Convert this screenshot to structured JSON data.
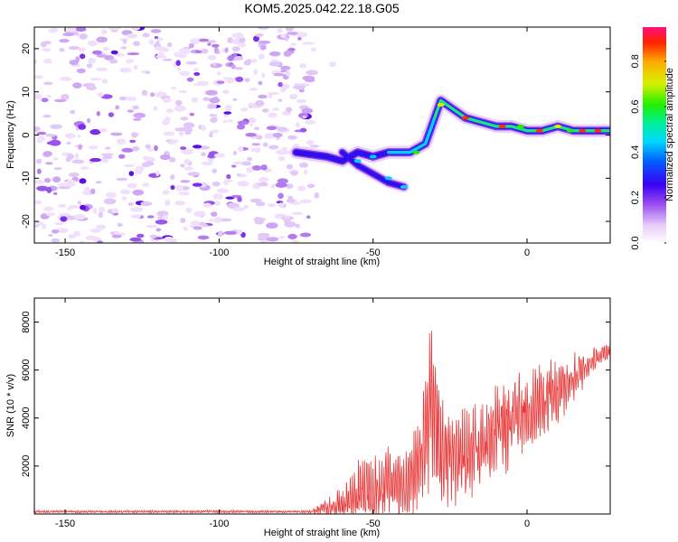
{
  "chart_data": [
    {
      "type": "heatmap",
      "title": "KOM5.2025.042.22.18.G05",
      "xlabel": "Height of straight line (km)",
      "ylabel": "Frequency (Hz)",
      "xlim": [
        -160,
        27
      ],
      "ylim": [
        -25,
        25
      ],
      "xticks": [
        -150,
        -100,
        -50,
        0
      ],
      "yticks": [
        -20,
        -10,
        0,
        10,
        20
      ],
      "colorbar": {
        "label": "Normalized spectral amplitude",
        "range": [
          0,
          0.95
        ],
        "ticks": [
          0.0,
          0.2,
          0.4,
          0.6,
          0.8
        ]
      },
      "ridge": {
        "name": "dominant frequency trace",
        "points": [
          {
            "x": -75,
            "y": -4
          },
          {
            "x": -65,
            "y": -5
          },
          {
            "x": -60,
            "y": -6
          },
          {
            "x": -55,
            "y": -4
          },
          {
            "x": -50,
            "y": -5
          },
          {
            "x": -45,
            "y": -4
          },
          {
            "x": -38,
            "y": -4
          },
          {
            "x": -33,
            "y": -2
          },
          {
            "x": -30,
            "y": 4
          },
          {
            "x": -28,
            "y": 8
          },
          {
            "x": -20,
            "y": 4
          },
          {
            "x": -15,
            "y": 3
          },
          {
            "x": -10,
            "y": 2
          },
          {
            "x": -5,
            "y": 2
          },
          {
            "x": 0,
            "y": 1
          },
          {
            "x": 5,
            "y": 1
          },
          {
            "x": 10,
            "y": 2
          },
          {
            "x": 15,
            "y": 1
          },
          {
            "x": 20,
            "y": 1
          },
          {
            "x": 27,
            "y": 1
          }
        ],
        "branch": [
          {
            "x": -60,
            "y": -4
          },
          {
            "x": -55,
            "y": -7
          },
          {
            "x": -50,
            "y": -9
          },
          {
            "x": -45,
            "y": -11
          },
          {
            "x": -40,
            "y": -12
          }
        ]
      },
      "noise_extent_x": [
        -160,
        -70
      ]
    },
    {
      "type": "line",
      "xlabel": "Height of straight line (km)",
      "ylabel": "SNR (10 * v/v)",
      "xlim": [
        -160,
        27
      ],
      "ylim": [
        0,
        9000
      ],
      "xticks": [
        -150,
        -100,
        -50,
        0
      ],
      "yticks": [
        2000,
        4000,
        6000,
        8000
      ],
      "color": "#e8393a",
      "envelope": [
        {
          "x": -160,
          "mean": 100,
          "amp": 60
        },
        {
          "x": -70,
          "mean": 100,
          "amp": 60
        },
        {
          "x": -60,
          "mean": 400,
          "amp": 800
        },
        {
          "x": -55,
          "mean": 900,
          "amp": 1500
        },
        {
          "x": -50,
          "mean": 900,
          "amp": 1500
        },
        {
          "x": -45,
          "mean": 1300,
          "amp": 1700
        },
        {
          "x": -40,
          "mean": 1200,
          "amp": 1600
        },
        {
          "x": -35,
          "mean": 1800,
          "amp": 2300
        },
        {
          "x": -31,
          "mean": 5000,
          "amp": 4000
        },
        {
          "x": -28,
          "mean": 2500,
          "amp": 2500
        },
        {
          "x": -20,
          "mean": 2500,
          "amp": 2000
        },
        {
          "x": -10,
          "mean": 3300,
          "amp": 2200
        },
        {
          "x": 0,
          "mean": 4300,
          "amp": 1800
        },
        {
          "x": 10,
          "mean": 5000,
          "amp": 1600
        },
        {
          "x": 20,
          "mean": 6300,
          "amp": 700
        },
        {
          "x": 27,
          "mean": 6900,
          "amp": 350
        }
      ]
    }
  ]
}
